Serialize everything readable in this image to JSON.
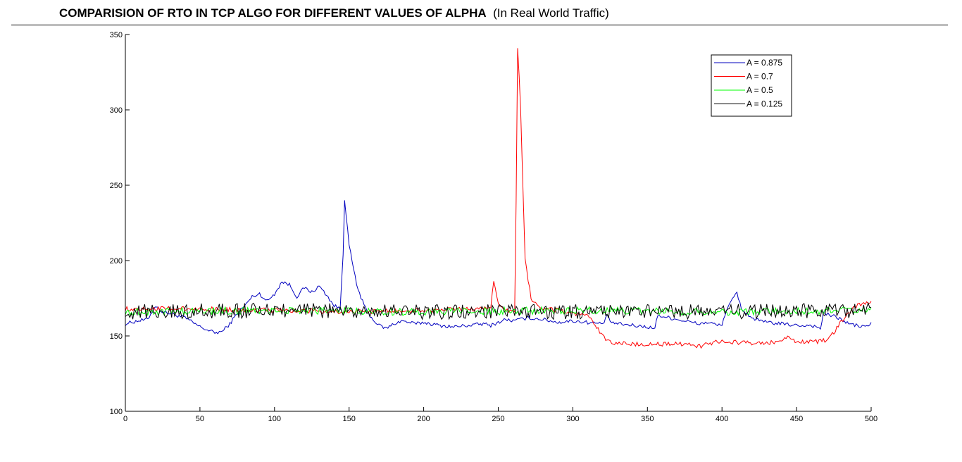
{
  "header": {
    "title_bold": "COMPARISION OF RTO IN TCP ALGO FOR DIFFERENT VALUES OF ALPHA",
    "title_normal": "(In Real World Traffic)"
  },
  "chart_data": {
    "type": "line",
    "title": "COMPARISION OF RTO IN TCP ALGO FOR DIFFERENT VALUES OF ALPHA (In Real World Traffic)",
    "xlabel": "",
    "ylabel": "",
    "xlim": [
      0,
      500
    ],
    "ylim": [
      100,
      350
    ],
    "xticks": [
      0,
      50,
      100,
      150,
      200,
      250,
      300,
      350,
      400,
      450,
      500
    ],
    "yticks": [
      100,
      150,
      200,
      250,
      300,
      350
    ],
    "grid": false,
    "legend_position": "top-right",
    "series": [
      {
        "name": "A = 0.875",
        "color": "#0000bf",
        "keypoints": [
          [
            0,
            158
          ],
          [
            8,
            160
          ],
          [
            15,
            161
          ],
          [
            20,
            170
          ],
          [
            25,
            166
          ],
          [
            30,
            165
          ],
          [
            40,
            162
          ],
          [
            50,
            156
          ],
          [
            55,
            154
          ],
          [
            60,
            152
          ],
          [
            65,
            153
          ],
          [
            70,
            158
          ],
          [
            75,
            165
          ],
          [
            80,
            170
          ],
          [
            85,
            176
          ],
          [
            90,
            178
          ],
          [
            95,
            173
          ],
          [
            100,
            178
          ],
          [
            105,
            186
          ],
          [
            110,
            184
          ],
          [
            115,
            176
          ],
          [
            120,
            182
          ],
          [
            125,
            179
          ],
          [
            130,
            183
          ],
          [
            135,
            177
          ],
          [
            140,
            170
          ],
          [
            144,
            168
          ],
          [
            146,
            205
          ],
          [
            147,
            241
          ],
          [
            150,
            210
          ],
          [
            155,
            184
          ],
          [
            160,
            170
          ],
          [
            165,
            162
          ],
          [
            170,
            157
          ],
          [
            175,
            155
          ],
          [
            180,
            158
          ],
          [
            185,
            160
          ],
          [
            190,
            159
          ],
          [
            195,
            158
          ],
          [
            200,
            159
          ],
          [
            210,
            157
          ],
          [
            220,
            156
          ],
          [
            230,
            157
          ],
          [
            240,
            158
          ],
          [
            245,
            157
          ],
          [
            250,
            159
          ],
          [
            255,
            161
          ],
          [
            260,
            160
          ],
          [
            265,
            161
          ],
          [
            270,
            162
          ],
          [
            280,
            161
          ],
          [
            290,
            159
          ],
          [
            300,
            160
          ],
          [
            310,
            159
          ],
          [
            320,
            158
          ],
          [
            323,
            163
          ],
          [
            326,
            159
          ],
          [
            330,
            158
          ],
          [
            340,
            157
          ],
          [
            350,
            156
          ],
          [
            355,
            155
          ],
          [
            357,
            164
          ],
          [
            360,
            163
          ],
          [
            370,
            161
          ],
          [
            375,
            160
          ],
          [
            380,
            159
          ],
          [
            385,
            158
          ],
          [
            390,
            159
          ],
          [
            398,
            157
          ],
          [
            400,
            158
          ],
          [
            403,
            167
          ],
          [
            410,
            179
          ],
          [
            413,
            168
          ],
          [
            420,
            162
          ],
          [
            425,
            160
          ],
          [
            430,
            159
          ],
          [
            440,
            158
          ],
          [
            450,
            157
          ],
          [
            460,
            157
          ],
          [
            466,
            155
          ],
          [
            468,
            165
          ],
          [
            475,
            163
          ],
          [
            480,
            161
          ],
          [
            485,
            158
          ],
          [
            490,
            157
          ],
          [
            495,
            156
          ],
          [
            500,
            158
          ]
        ],
        "noise": 1.2
      },
      {
        "name": "A = 0.7",
        "color": "#ff0000",
        "keypoints": [
          [
            0,
            168
          ],
          [
            50,
            168
          ],
          [
            100,
            167
          ],
          [
            150,
            166
          ],
          [
            200,
            167
          ],
          [
            240,
            168
          ],
          [
            245,
            170
          ],
          [
            247,
            185
          ],
          [
            250,
            172
          ],
          [
            255,
            167
          ],
          [
            260,
            166
          ],
          [
            261,
            167
          ],
          [
            262,
            240
          ],
          [
            263,
            342
          ],
          [
            265,
            300
          ],
          [
            268,
            200
          ],
          [
            272,
            175
          ],
          [
            278,
            168
          ],
          [
            290,
            167
          ],
          [
            300,
            165
          ],
          [
            305,
            164
          ],
          [
            310,
            163
          ],
          [
            315,
            157
          ],
          [
            320,
            150
          ],
          [
            325,
            146
          ],
          [
            335,
            145
          ],
          [
            350,
            144
          ],
          [
            365,
            145
          ],
          [
            380,
            144
          ],
          [
            385,
            143
          ],
          [
            395,
            146
          ],
          [
            405,
            146
          ],
          [
            420,
            145
          ],
          [
            440,
            146
          ],
          [
            445,
            150
          ],
          [
            450,
            146
          ],
          [
            460,
            146
          ],
          [
            470,
            147
          ],
          [
            475,
            152
          ],
          [
            480,
            160
          ],
          [
            485,
            165
          ],
          [
            490,
            170
          ],
          [
            500,
            172
          ]
        ],
        "noise": 1.5
      },
      {
        "name": "A = 0.5",
        "color": "#00ff00",
        "keypoints": [
          [
            0,
            166
          ],
          [
            100,
            167
          ],
          [
            200,
            166
          ],
          [
            300,
            167
          ],
          [
            400,
            166
          ],
          [
            500,
            167
          ]
        ],
        "noise": 2.5
      },
      {
        "name": "A = 0.125",
        "color": "#000000",
        "keypoints": [
          [
            0,
            166
          ],
          [
            100,
            167
          ],
          [
            200,
            166
          ],
          [
            300,
            166
          ],
          [
            400,
            166
          ],
          [
            500,
            167
          ]
        ],
        "noise": 5
      }
    ]
  }
}
